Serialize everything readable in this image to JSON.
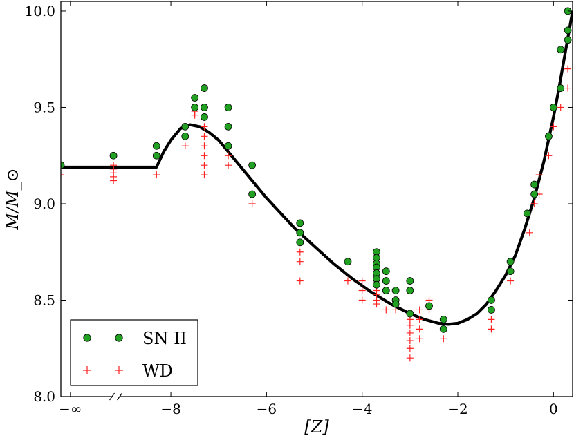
{
  "chart_data": {
    "type": "scatter",
    "xlabel": "[Z]",
    "ylabel": "M/M_⊙",
    "xlim": [
      -10.3,
      0.4
    ],
    "ylim": [
      8.0,
      10.05
    ],
    "xticks": [
      {
        "value": -10.1,
        "label": "−∞"
      },
      {
        "value": -8,
        "label": "−8"
      },
      {
        "value": -6,
        "label": "−6"
      },
      {
        "value": -4,
        "label": "−4"
      },
      {
        "value": -2,
        "label": "−2"
      },
      {
        "value": 0,
        "label": "0"
      }
    ],
    "yticks": [
      {
        "value": 8.0,
        "label": "8.0"
      },
      {
        "value": 8.5,
        "label": "8.5"
      },
      {
        "value": 9.0,
        "label": "9.0"
      },
      {
        "value": 9.5,
        "label": "9.5"
      },
      {
        "value": 10.0,
        "label": "10.0"
      }
    ],
    "axis_break_at": -9.15,
    "legend": {
      "placement": "bottom-left",
      "entries": [
        "SN II",
        "WD"
      ]
    },
    "series": [
      {
        "name": "fit",
        "kind": "line",
        "color": "#000000",
        "points": [
          [
            -10.3,
            9.19
          ],
          [
            -8.3,
            9.19
          ],
          [
            -8.15,
            9.27
          ],
          [
            -8.0,
            9.33
          ],
          [
            -7.8,
            9.39
          ],
          [
            -7.6,
            9.41
          ],
          [
            -7.4,
            9.4
          ],
          [
            -7.2,
            9.37
          ],
          [
            -7.0,
            9.33
          ],
          [
            -6.8,
            9.27
          ],
          [
            -6.6,
            9.21
          ],
          [
            -6.3,
            9.12
          ],
          [
            -6.0,
            9.03
          ],
          [
            -5.7,
            8.95
          ],
          [
            -5.4,
            8.87
          ],
          [
            -5.0,
            8.78
          ],
          [
            -4.6,
            8.69
          ],
          [
            -4.2,
            8.61
          ],
          [
            -3.8,
            8.54
          ],
          [
            -3.4,
            8.48
          ],
          [
            -3.0,
            8.43
          ],
          [
            -2.7,
            8.4
          ],
          [
            -2.4,
            8.38
          ],
          [
            -2.2,
            8.375
          ],
          [
            -2.0,
            8.38
          ],
          [
            -1.8,
            8.4
          ],
          [
            -1.6,
            8.43
          ],
          [
            -1.4,
            8.48
          ],
          [
            -1.2,
            8.55
          ],
          [
            -1.0,
            8.63
          ],
          [
            -0.8,
            8.73
          ],
          [
            -0.6,
            8.87
          ],
          [
            -0.4,
            9.03
          ],
          [
            -0.2,
            9.22
          ],
          [
            0.0,
            9.45
          ],
          [
            0.1,
            9.58
          ],
          [
            0.2,
            9.72
          ],
          [
            0.3,
            9.86
          ],
          [
            0.4,
            10.0
          ]
        ]
      },
      {
        "name": "SN II",
        "kind": "circle",
        "color": "#22a022",
        "points": [
          [
            -10.3,
            9.2
          ],
          [
            -9.2,
            9.25
          ],
          [
            -8.3,
            9.3
          ],
          [
            -8.3,
            9.25
          ],
          [
            -7.7,
            9.4
          ],
          [
            -7.7,
            9.35
          ],
          [
            -7.5,
            9.55
          ],
          [
            -7.5,
            9.5
          ],
          [
            -7.3,
            9.6
          ],
          [
            -7.3,
            9.5
          ],
          [
            -7.3,
            9.45
          ],
          [
            -6.8,
            9.5
          ],
          [
            -6.8,
            9.4
          ],
          [
            -6.8,
            9.3
          ],
          [
            -6.3,
            9.2
          ],
          [
            -6.3,
            9.05
          ],
          [
            -5.3,
            8.9
          ],
          [
            -5.3,
            8.85
          ],
          [
            -5.3,
            8.8
          ],
          [
            -4.3,
            8.7
          ],
          [
            -3.7,
            8.75
          ],
          [
            -3.7,
            8.72
          ],
          [
            -3.7,
            8.69
          ],
          [
            -3.7,
            8.67
          ],
          [
            -3.7,
            8.64
          ],
          [
            -3.7,
            8.61
          ],
          [
            -3.7,
            8.58
          ],
          [
            -3.5,
            8.65
          ],
          [
            -3.5,
            8.6
          ],
          [
            -3.5,
            8.55
          ],
          [
            -3.3,
            8.55
          ],
          [
            -3.3,
            8.5
          ],
          [
            -3.3,
            8.48
          ],
          [
            -3.0,
            8.6
          ],
          [
            -3.0,
            8.55
          ],
          [
            -3.0,
            8.43
          ],
          [
            -2.6,
            8.47
          ],
          [
            -2.3,
            8.4
          ],
          [
            -2.3,
            8.35
          ],
          [
            -1.3,
            8.5
          ],
          [
            -1.3,
            8.45
          ],
          [
            -0.9,
            8.7
          ],
          [
            -0.9,
            8.65
          ],
          [
            -0.55,
            8.95
          ],
          [
            -0.4,
            9.1
          ],
          [
            -0.4,
            9.05
          ],
          [
            -0.1,
            9.35
          ],
          [
            0.0,
            9.5
          ],
          [
            0.15,
            9.8
          ],
          [
            0.15,
            9.6
          ],
          [
            0.3,
            10.0
          ],
          [
            0.3,
            9.9
          ],
          [
            0.3,
            9.85
          ]
        ]
      },
      {
        "name": "WD",
        "kind": "plus",
        "color": "#ff2020",
        "points": [
          [
            -10.3,
            9.15
          ],
          [
            -9.2,
            9.2
          ],
          [
            -9.2,
            9.18
          ],
          [
            -9.2,
            9.16
          ],
          [
            -9.2,
            9.14
          ],
          [
            -9.2,
            9.12
          ],
          [
            -8.3,
            9.15
          ],
          [
            -7.7,
            9.3
          ],
          [
            -7.5,
            9.5
          ],
          [
            -7.5,
            9.48
          ],
          [
            -7.5,
            9.46
          ],
          [
            -7.3,
            9.4
          ],
          [
            -7.3,
            9.35
          ],
          [
            -7.3,
            9.3
          ],
          [
            -7.3,
            9.25
          ],
          [
            -7.3,
            9.2
          ],
          [
            -7.3,
            9.15
          ],
          [
            -6.8,
            9.25
          ],
          [
            -6.8,
            9.2
          ],
          [
            -6.3,
            9.0
          ],
          [
            -5.3,
            8.75
          ],
          [
            -5.3,
            8.7
          ],
          [
            -5.3,
            8.6
          ],
          [
            -4.3,
            8.6
          ],
          [
            -4.0,
            8.6
          ],
          [
            -4.0,
            8.55
          ],
          [
            -4.0,
            8.5
          ],
          [
            -3.7,
            8.6
          ],
          [
            -3.7,
            8.58
          ],
          [
            -3.7,
            8.55
          ],
          [
            -3.7,
            8.53
          ],
          [
            -3.7,
            8.5
          ],
          [
            -3.7,
            8.48
          ],
          [
            -3.5,
            8.45
          ],
          [
            -3.3,
            8.45
          ],
          [
            -3.0,
            8.4
          ],
          [
            -3.0,
            8.37
          ],
          [
            -3.0,
            8.33
          ],
          [
            -3.0,
            8.29
          ],
          [
            -3.0,
            8.25
          ],
          [
            -3.0,
            8.2
          ],
          [
            -2.8,
            8.45
          ],
          [
            -2.8,
            8.4
          ],
          [
            -2.8,
            8.35
          ],
          [
            -2.8,
            8.3
          ],
          [
            -2.6,
            8.5
          ],
          [
            -2.6,
            8.45
          ],
          [
            -2.3,
            8.3
          ],
          [
            -1.3,
            8.4
          ],
          [
            -1.3,
            8.35
          ],
          [
            -0.9,
            8.6
          ],
          [
            -0.5,
            8.85
          ],
          [
            -0.4,
            9.0
          ],
          [
            -0.3,
            9.05
          ],
          [
            -0.3,
            9.15
          ],
          [
            -0.1,
            9.25
          ],
          [
            0.0,
            9.4
          ],
          [
            0.15,
            9.5
          ],
          [
            0.3,
            9.7
          ],
          [
            0.3,
            9.6
          ]
        ]
      }
    ]
  }
}
